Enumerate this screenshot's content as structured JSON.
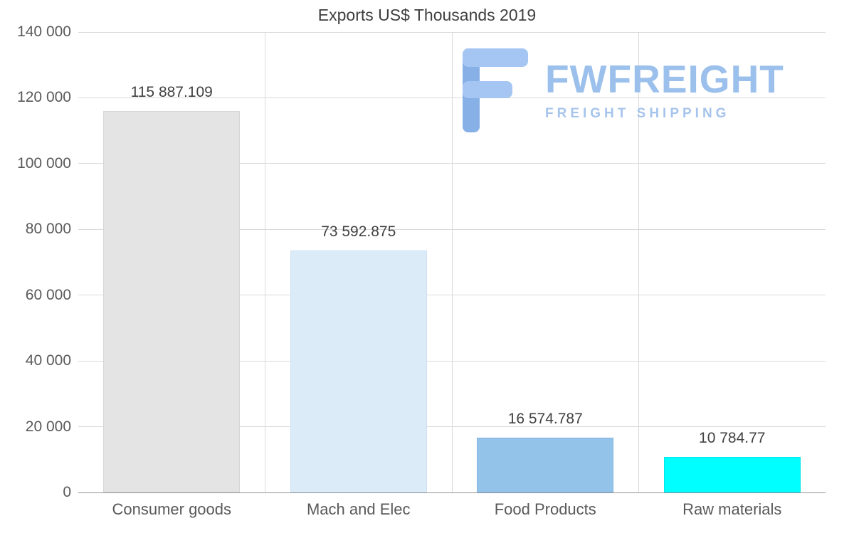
{
  "page": {
    "title": "Exports US$ Thousands 2019"
  },
  "brand": {
    "name": "FWFREIGHT",
    "tagline": "FREIGHT SHIPPING",
    "name_color": "#9bc0ec",
    "tagline_color": "#a6c4ec",
    "icon_color_dark": "#86b0e6",
    "icon_color_light": "#a5c6f2"
  },
  "chart_data": {
    "type": "bar",
    "title": "Exports US$ Thousands 2019",
    "categories": [
      "Consumer goods",
      "Mach and Elec",
      "Food Products",
      "Raw materials"
    ],
    "values": [
      115887.109,
      73592.875,
      16574.787,
      10784.77
    ],
    "value_labels": [
      "115 887.109",
      "73 592.875",
      "16 574.787",
      "10 784.77"
    ],
    "bar_colors": [
      "#e4e4e4",
      "#dcebf8",
      "#94c3ea",
      "#00ffff"
    ],
    "bar_border_colors": [
      "#d6d6d6",
      "#cde0f2",
      "#83b5e2",
      "#00e6e6"
    ],
    "xlabel": "",
    "ylabel": "",
    "ylim": [
      0,
      140000
    ],
    "y_tick_step": 20000,
    "y_ticks": [
      {
        "value": 0,
        "label": "0"
      },
      {
        "value": 20000,
        "label": "20 000"
      },
      {
        "value": 40000,
        "label": "40 000"
      },
      {
        "value": 60000,
        "label": "60 000"
      },
      {
        "value": 80000,
        "label": "80 000"
      },
      {
        "value": 100000,
        "label": "100 000"
      },
      {
        "value": 120000,
        "label": "120 000"
      },
      {
        "value": 140000,
        "label": "140 000"
      }
    ],
    "grid": true,
    "legend_position": "none"
  }
}
